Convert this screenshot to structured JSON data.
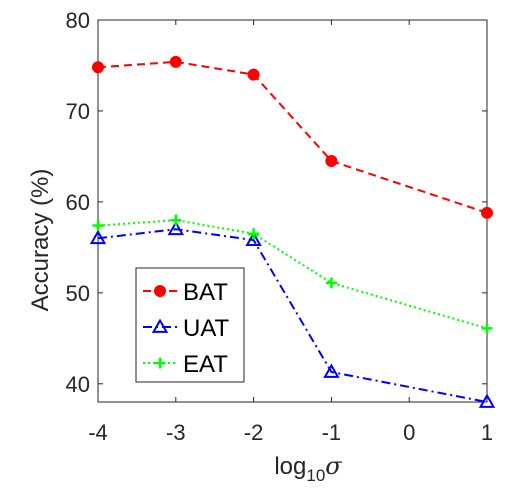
{
  "chart_data": {
    "type": "line",
    "title": "",
    "xlabel": "log",
    "xlabel_sub": "10",
    "xlabel_symbol": "σ",
    "ylabel": "Accuracy (%)",
    "xlim": [
      -4,
      1
    ],
    "ylim": [
      38,
      80
    ],
    "x_ticks": [
      -4,
      -3,
      -2,
      -1,
      0,
      1
    ],
    "x_tick_labels": [
      "-4",
      "-3",
      "-2",
      "-1",
      "0",
      "1"
    ],
    "y_ticks": [
      40,
      50,
      60,
      70,
      80
    ],
    "y_tick_labels": [
      "40",
      "50",
      "60",
      "70",
      "80"
    ],
    "grid": false,
    "legend_position": "lower-left",
    "x": [
      -4,
      -3,
      -2,
      -1,
      1
    ],
    "series": [
      {
        "name": "BAT",
        "values": [
          74.8,
          75.4,
          74.0,
          64.5,
          58.8
        ],
        "color": "#ff0000",
        "marker": "circle",
        "dash": "dashed"
      },
      {
        "name": "UAT",
        "values": [
          56.0,
          57.0,
          55.8,
          41.3,
          38.0
        ],
        "color": "#0000ff",
        "marker": "triangle",
        "dash": "dashdot"
      },
      {
        "name": "EAT",
        "values": [
          57.4,
          58.0,
          56.5,
          51.1,
          46.1
        ],
        "color": "#00ff00",
        "marker": "plus",
        "dash": "dotted"
      }
    ]
  }
}
